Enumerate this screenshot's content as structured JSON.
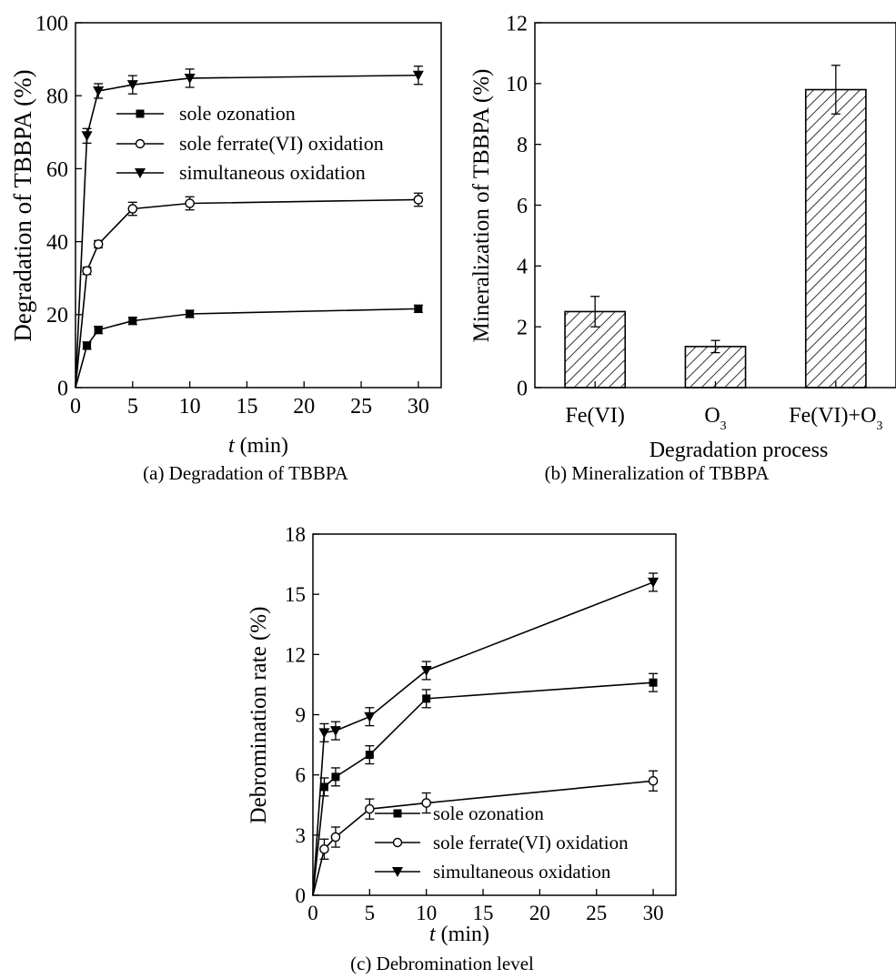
{
  "chart_data": [
    {
      "type": "line",
      "caption": "(a) Degradation of TBBPA",
      "xlabel_italic": "t",
      "xlabel_rest": " (min)",
      "ylabel": "Degradation of TBBPA (%)",
      "xlim": [
        0,
        32
      ],
      "ylim": [
        0,
        100
      ],
      "xticks": [
        0,
        5,
        10,
        15,
        20,
        25,
        30
      ],
      "yticks": [
        0,
        20,
        40,
        60,
        80,
        100
      ],
      "legend_position": "top-right",
      "series": [
        {
          "name": "sole ozonation",
          "marker": "square",
          "x": [
            0,
            1,
            2,
            5,
            10,
            30
          ],
          "y": [
            0,
            11.5,
            15.8,
            18.3,
            20.2,
            21.6
          ],
          "err": [
            0,
            1.0,
            1.0,
            1.0,
            1.0,
            1.0
          ]
        },
        {
          "name": "sole ferrate(VI) oxidation",
          "marker": "open-circle",
          "x": [
            0,
            1,
            2,
            5,
            10,
            30
          ],
          "y": [
            0,
            32.0,
            39.3,
            49.0,
            50.5,
            51.5
          ],
          "err": [
            0,
            1.0,
            1.0,
            1.8,
            1.8,
            1.8
          ]
        },
        {
          "name": "simultaneous oxidation",
          "marker": "down-triangle",
          "x": [
            0,
            1,
            2,
            5,
            10,
            30
          ],
          "y": [
            0,
            69.0,
            81.3,
            83.0,
            84.8,
            85.6
          ],
          "err": [
            0,
            2.0,
            2.0,
            2.5,
            2.5,
            2.5
          ]
        }
      ]
    },
    {
      "type": "bar",
      "caption": "(b) Mineralization of TBBPA",
      "xlabel": "Degradation process",
      "ylabel": "Mineralization of TBBPA (%)",
      "categories": [
        {
          "base": "Fe(VI)",
          "sub": ""
        },
        {
          "base": "O",
          "sub": "3"
        },
        {
          "base": "Fe(VI)+O",
          "sub": "3"
        }
      ],
      "values": [
        2.5,
        1.35,
        9.8
      ],
      "err": [
        0.5,
        0.2,
        0.8
      ],
      "ylim": [
        0,
        12
      ],
      "yticks": [
        0,
        2,
        4,
        6,
        8,
        10,
        12
      ],
      "fill": "diagonal-hatch"
    },
    {
      "type": "line",
      "caption": "(c) Debromination level",
      "xlabel_italic": "t",
      "xlabel_rest": " (min)",
      "ylabel": "Debromination rate (%)",
      "xlim": [
        0,
        32
      ],
      "ylim": [
        0,
        18
      ],
      "xticks": [
        0,
        5,
        10,
        15,
        20,
        25,
        30
      ],
      "yticks": [
        0,
        3,
        6,
        9,
        12,
        15,
        18
      ],
      "legend_position": "bottom-right",
      "series": [
        {
          "name": "sole ozonation",
          "marker": "square",
          "x": [
            0,
            1,
            2,
            5,
            10,
            30
          ],
          "y": [
            0,
            5.4,
            5.9,
            7.0,
            9.8,
            10.6
          ],
          "err": [
            0,
            0.45,
            0.45,
            0.45,
            0.45,
            0.45
          ]
        },
        {
          "name": "sole ferrate(VI) oxidation",
          "marker": "open-circle",
          "x": [
            0,
            1,
            2,
            5,
            10,
            30
          ],
          "y": [
            0,
            2.3,
            2.9,
            4.3,
            4.6,
            5.7
          ],
          "err": [
            0,
            0.5,
            0.5,
            0.5,
            0.5,
            0.5
          ]
        },
        {
          "name": "simultaneous oxidation",
          "marker": "down-triangle",
          "x": [
            0,
            1,
            2,
            5,
            10,
            30
          ],
          "y": [
            0,
            8.1,
            8.2,
            8.9,
            11.2,
            15.6
          ],
          "err": [
            0,
            0.45,
            0.45,
            0.45,
            0.45,
            0.45
          ]
        }
      ]
    }
  ]
}
